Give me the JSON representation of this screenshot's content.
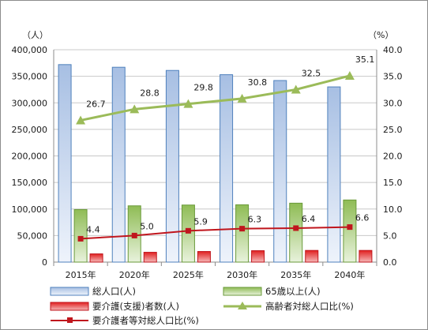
{
  "chart_data": {
    "type": "bar",
    "categories": [
      "2015年",
      "2020年",
      "2025年",
      "2030年",
      "2035年",
      "2040年"
    ],
    "y_left": {
      "unit": "（人）",
      "min": 0,
      "max": 400000,
      "step": 50000,
      "ticks": [
        "0",
        "50,000",
        "100,000",
        "150,000",
        "200,000",
        "250,000",
        "300,000",
        "350,000",
        "400,000"
      ]
    },
    "y_right": {
      "unit": "（%）",
      "min": 0,
      "max": 40,
      "step": 5,
      "ticks": [
        "0.0",
        "5.0",
        "10.0",
        "15.0",
        "20.0",
        "25.0",
        "30.0",
        "35.0",
        "40.0"
      ]
    },
    "grid": true,
    "legend_position": "bottom",
    "series": [
      {
        "name": "総人口(人)",
        "type": "bar",
        "axis": "left",
        "color": "#4f81bd",
        "values": [
          372000,
          367000,
          361000,
          353000,
          342000,
          330000
        ]
      },
      {
        "name": "65歳以上(人)",
        "type": "bar",
        "axis": "left",
        "color": "#9bbb59",
        "values": [
          99000,
          106000,
          107500,
          108000,
          111000,
          117000
        ]
      },
      {
        "name": "要介護(支援)者数(人)",
        "type": "bar",
        "axis": "left",
        "color": "#e02020",
        "values": [
          15500,
          18500,
          20000,
          21500,
          22000,
          22000
        ]
      },
      {
        "name": "高齢者対総人口比(%)",
        "type": "line",
        "axis": "right",
        "color": "#9bbb59",
        "marker": "triangle",
        "values": [
          26.7,
          28.8,
          29.8,
          30.8,
          32.5,
          35.1
        ],
        "labels": [
          "26.7",
          "28.8",
          "29.8",
          "30.8",
          "32.5",
          "35.1"
        ]
      },
      {
        "name": "要介護者等対総人口比(%)",
        "type": "line",
        "axis": "right",
        "color": "#c0161d",
        "marker": "square",
        "values": [
          4.4,
          5.0,
          5.9,
          6.3,
          6.4,
          6.6
        ],
        "labels": [
          "4.4",
          "5.0",
          "5.9",
          "6.3",
          "6.4",
          "6.6"
        ]
      }
    ]
  }
}
